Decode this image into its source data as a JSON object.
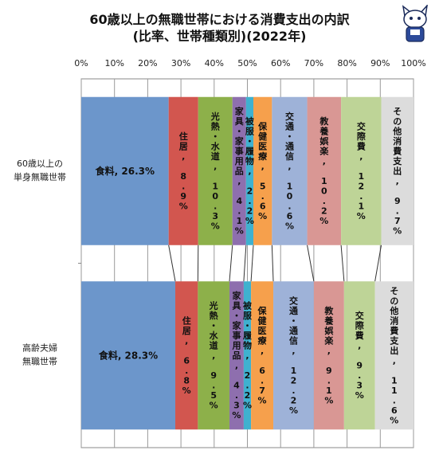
{
  "chart_data": {
    "type": "bar",
    "orientation": "horizontal",
    "stacked": "percent",
    "title": "60歳以上の無職世帯における消費支出の内訳",
    "subtitle": "(比率、世帯種類別)(2022年)",
    "xlim": [
      0,
      100
    ],
    "x_tick_labels": [
      "0%",
      "10%",
      "20%",
      "30%",
      "40%",
      "50%",
      "60%",
      "70%",
      "80%",
      "90%",
      "100%"
    ],
    "grid": true,
    "legend": "none",
    "categories": [
      [
        "60歳以上の",
        "単身無職世帯"
      ],
      [
        "高齢夫婦",
        "無職世帯"
      ]
    ],
    "series": [
      {
        "name": "食料",
        "color": "#6c96cb",
        "values": [
          26.3,
          28.3
        ],
        "labels": [
          "食料, 26.3%",
          "食料, 28.3%"
        ]
      },
      {
        "name": "住居",
        "color": "#d2564f",
        "values": [
          8.9,
          6.8
        ],
        "labels": [
          "住居, 8.9%",
          "住居, 6.8%"
        ]
      },
      {
        "name": "光熱・水道",
        "color": "#8db04a",
        "values": [
          10.3,
          9.5
        ],
        "labels": [
          "光熱・水道, 10.3%",
          "光熱・水道, 9.5%"
        ]
      },
      {
        "name": "家具・家事用品",
        "color": "#8e6fae",
        "values": [
          4.1,
          4.3
        ],
        "labels": [
          "家具・家事用品, 4.1%",
          "家具・家事用品, 4.3%"
        ]
      },
      {
        "name": "被服・履物",
        "color": "#3fb1cf",
        "values": [
          2.2,
          2.2
        ],
        "labels": [
          "被服・履物, 2.2%",
          "被服・履物, 2.2%"
        ]
      },
      {
        "name": "保健医療",
        "color": "#f6a04c",
        "values": [
          5.6,
          6.7
        ],
        "labels": [
          "保健医療, 5.6%",
          "保健医療, 6.7%"
        ]
      },
      {
        "name": "交通・通信",
        "color": "#9eb2d8",
        "values": [
          10.6,
          12.2
        ],
        "labels": [
          "交通・通信, 10.6%",
          "交通・通信, 12.2%"
        ]
      },
      {
        "name": "教養娯楽",
        "color": "#d99794",
        "values": [
          10.2,
          9.1
        ],
        "labels": [
          "教養娯楽, 10.2%",
          "教養娯楽, 9.1%"
        ]
      },
      {
        "name": "交際費",
        "color": "#bed497",
        "values": [
          12.1,
          9.3
        ],
        "labels": [
          "交際費, 12.1%",
          "交際費, 9.3%"
        ]
      },
      {
        "name": "その他消費支出",
        "color": "#dcdcdc",
        "values": [
          9.7,
          11.6
        ],
        "labels": [
          "その他消費支出, 9.7%",
          "その他消費支出, 11.6%"
        ]
      }
    ]
  },
  "mascot_icon": "cat-mascot-icon"
}
